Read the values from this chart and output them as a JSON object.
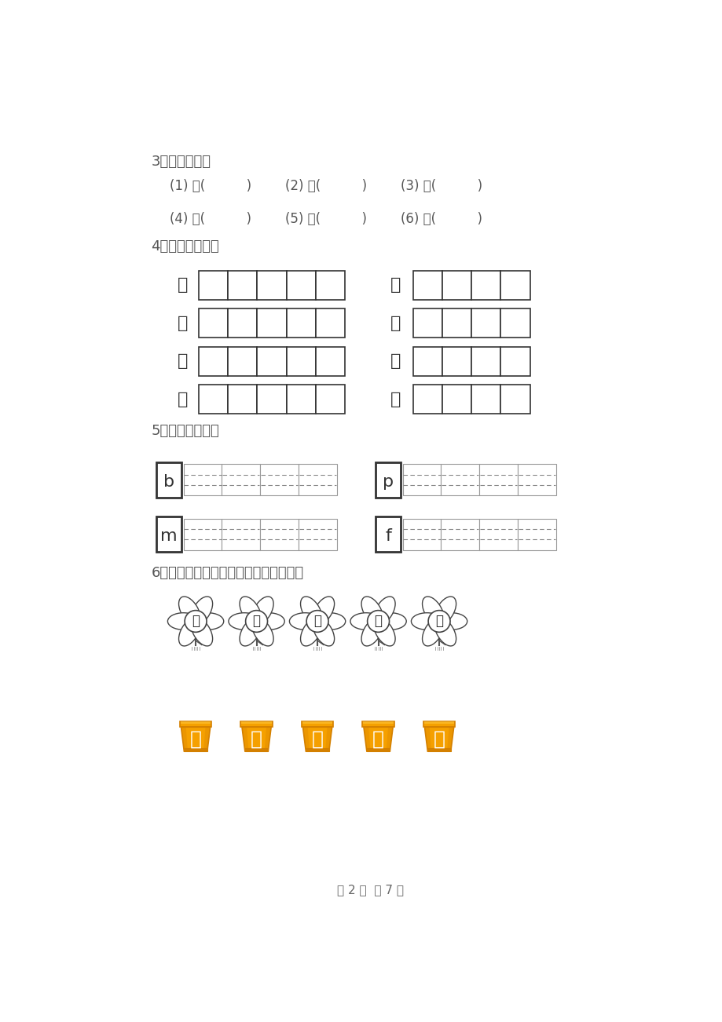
{
  "bg_color": "#ffffff",
  "text_color": "#555555",
  "dark_color": "#444444",
  "light_gray": "#888888",
  "section3_title": "3、我会组词。",
  "s3r1": [
    "(1) 门(          )",
    "(2) 水(          )",
    "(3) 衣(          )"
  ],
  "s3r2": [
    "(4) 树(          )",
    "(5) 车(          )",
    "(6) 苗(          )"
  ],
  "section4_title": "4、我会写生字。",
  "s4_left": [
    "木",
    "千",
    "田",
    "上"
  ],
  "s4_right": [
    "古",
    "大",
    "中",
    "工"
  ],
  "section5_title": "5、我会写拼音！",
  "s5_left": [
    "b",
    "m"
  ],
  "s5_right": [
    "p",
    "f"
  ],
  "section6_title": "6、请把花盆与花连起来组成一个词语。",
  "flowers": [
    "地",
    "音",
    "尾",
    "老",
    "劳"
  ],
  "pots": [
    "苦",
    "巴",
    "球",
    "动",
    "师"
  ],
  "pot_color": "#F5A000",
  "pot_dark": "#D48000",
  "page_text": "第 2 页  共 7 页"
}
